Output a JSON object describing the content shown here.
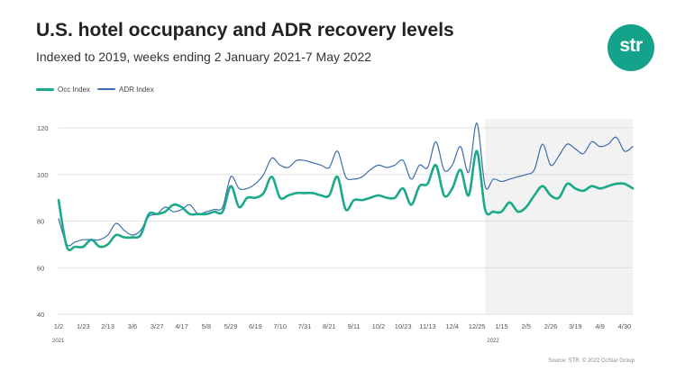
{
  "header": {
    "title": "U.S. hotel occupancy and ADR recovery levels",
    "subtitle": "Indexed to 2019, weeks ending 2 January 2021-7 May 2022"
  },
  "logo": {
    "text": "str"
  },
  "source": "Source: STR. © 2022 CoStar Group",
  "colors": {
    "occ": "#1aa989",
    "adr": "#3b6ead",
    "shade": "#f2f2f2",
    "grid": "#d9d9d9",
    "brand": "#15a28a"
  },
  "chart_data": {
    "type": "line",
    "title": "U.S. hotel occupancy and ADR recovery levels",
    "subtitle": "Indexed to 2019, weeks ending 2 January 2021-7 May 2022",
    "legend": [
      "Occ Index",
      "ADR Index"
    ],
    "legend_position": "top-left",
    "grid": true,
    "ylim": [
      40,
      120
    ],
    "yticks": [
      40,
      60,
      80,
      100,
      120
    ],
    "x_tick_labels": [
      "1/2",
      "1/23",
      "2/13",
      "3/6",
      "3/27",
      "4/17",
      "5/8",
      "5/29",
      "6/19",
      "7/10",
      "7/31",
      "8/21",
      "9/11",
      "10/2",
      "10/23",
      "11/13",
      "12/4",
      "12/25",
      "1/15",
      "2/5",
      "2/26",
      "3/19",
      "4/9",
      "4/30"
    ],
    "x_tick_weeks": [
      0,
      3,
      6,
      9,
      12,
      15,
      18,
      21,
      24,
      27,
      30,
      33,
      36,
      39,
      42,
      45,
      48,
      51,
      54,
      57,
      60,
      63,
      66,
      69
    ],
    "year_labels": [
      {
        "label": "2021",
        "week": 0
      },
      {
        "label": "2022",
        "week": 53
      }
    ],
    "shaded_region_weeks": [
      52,
      70
    ],
    "x_range_weeks": [
      0,
      70
    ],
    "series": [
      {
        "name": "Occ Index",
        "color": "#1aa989",
        "points": [
          [
            0,
            89
          ],
          [
            1,
            69
          ],
          [
            2,
            69
          ],
          [
            3,
            69
          ],
          [
            4,
            72
          ],
          [
            5,
            69
          ],
          [
            6,
            70
          ],
          [
            7,
            74
          ],
          [
            8,
            73
          ],
          [
            9,
            73
          ],
          [
            10,
            74
          ],
          [
            11,
            83
          ],
          [
            12,
            83
          ],
          [
            13,
            84
          ],
          [
            14,
            87
          ],
          [
            15,
            86
          ],
          [
            16,
            83
          ],
          [
            17,
            83
          ],
          [
            18,
            83
          ],
          [
            19,
            84
          ],
          [
            20,
            84
          ],
          [
            21,
            95
          ],
          [
            22,
            86
          ],
          [
            23,
            90
          ],
          [
            24,
            90
          ],
          [
            25,
            92
          ],
          [
            26,
            99
          ],
          [
            27,
            90
          ],
          [
            28,
            91
          ],
          [
            29,
            92
          ],
          [
            30,
            92
          ],
          [
            31,
            92
          ],
          [
            32,
            91
          ],
          [
            33,
            91
          ],
          [
            34,
            99
          ],
          [
            35,
            85
          ],
          [
            36,
            89
          ],
          [
            37,
            89
          ],
          [
            38,
            90
          ],
          [
            39,
            91
          ],
          [
            40,
            90
          ],
          [
            41,
            90
          ],
          [
            42,
            94
          ],
          [
            43,
            87
          ],
          [
            44,
            95
          ],
          [
            45,
            96
          ],
          [
            46,
            104
          ],
          [
            47,
            91
          ],
          [
            48,
            94
          ],
          [
            49,
            102
          ],
          [
            50,
            91
          ],
          [
            51,
            110
          ],
          [
            52,
            85
          ],
          [
            53,
            84
          ],
          [
            54,
            84
          ],
          [
            55,
            88
          ],
          [
            56,
            84
          ],
          [
            57,
            86
          ],
          [
            58,
            91
          ],
          [
            59,
            95
          ],
          [
            60,
            91
          ],
          [
            61,
            90
          ],
          [
            62,
            96
          ],
          [
            63,
            94
          ],
          [
            64,
            93
          ],
          [
            65,
            95
          ],
          [
            66,
            94
          ],
          [
            67,
            95
          ],
          [
            68,
            96
          ],
          [
            69,
            96
          ],
          [
            70,
            94
          ]
        ]
      },
      {
        "name": "ADR Index",
        "color": "#3b6ead",
        "points": [
          [
            0,
            81
          ],
          [
            1,
            70
          ],
          [
            2,
            71
          ],
          [
            3,
            72
          ],
          [
            4,
            72
          ],
          [
            5,
            72
          ],
          [
            6,
            74
          ],
          [
            7,
            79
          ],
          [
            8,
            76
          ],
          [
            9,
            74
          ],
          [
            10,
            76
          ],
          [
            11,
            82
          ],
          [
            12,
            83
          ],
          [
            13,
            86
          ],
          [
            14,
            84
          ],
          [
            15,
            85
          ],
          [
            16,
            87
          ],
          [
            17,
            83
          ],
          [
            18,
            84
          ],
          [
            19,
            85
          ],
          [
            20,
            86
          ],
          [
            21,
            99
          ],
          [
            22,
            94
          ],
          [
            23,
            94
          ],
          [
            24,
            96
          ],
          [
            25,
            100
          ],
          [
            26,
            107
          ],
          [
            27,
            104
          ],
          [
            28,
            103
          ],
          [
            29,
            106
          ],
          [
            30,
            106
          ],
          [
            31,
            105
          ],
          [
            32,
            104
          ],
          [
            33,
            103
          ],
          [
            34,
            110
          ],
          [
            35,
            99
          ],
          [
            36,
            98
          ],
          [
            37,
            99
          ],
          [
            38,
            102
          ],
          [
            39,
            104
          ],
          [
            40,
            103
          ],
          [
            41,
            104
          ],
          [
            42,
            106
          ],
          [
            43,
            98
          ],
          [
            44,
            104
          ],
          [
            45,
            103
          ],
          [
            46,
            114
          ],
          [
            47,
            102
          ],
          [
            48,
            104
          ],
          [
            49,
            112
          ],
          [
            50,
            101
          ],
          [
            51,
            122
          ],
          [
            52,
            95
          ],
          [
            53,
            98
          ],
          [
            54,
            97
          ],
          [
            55,
            98
          ],
          [
            56,
            99
          ],
          [
            57,
            100
          ],
          [
            58,
            102
          ],
          [
            59,
            113
          ],
          [
            60,
            104
          ],
          [
            61,
            108
          ],
          [
            62,
            113
          ],
          [
            63,
            111
          ],
          [
            64,
            109
          ],
          [
            65,
            114
          ],
          [
            66,
            112
          ],
          [
            67,
            113
          ],
          [
            68,
            116
          ],
          [
            69,
            110
          ],
          [
            70,
            112
          ]
        ]
      }
    ]
  }
}
